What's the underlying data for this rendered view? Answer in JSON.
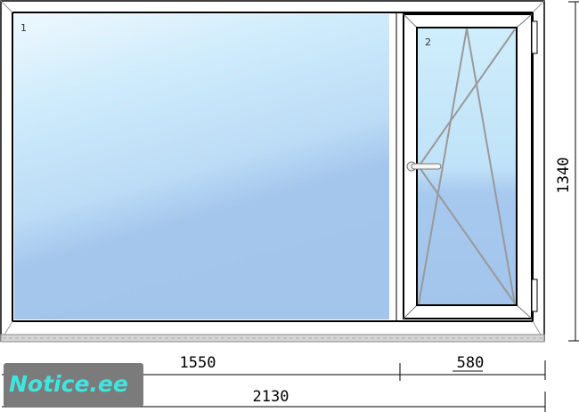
{
  "panes": [
    {
      "label": "1"
    },
    {
      "label": "2"
    }
  ],
  "dimensions": {
    "height": "1340",
    "width_left": "1550",
    "width_right": "580",
    "width_total": "2130"
  },
  "watermark": "Notice.ee",
  "colors": {
    "glass_top": "#d2ecfb",
    "glass_bottom": "#a3c6ec",
    "frame": "#ffffff",
    "watermark_bg": "#7b7b7b",
    "watermark_text": "#3fe6e0"
  }
}
